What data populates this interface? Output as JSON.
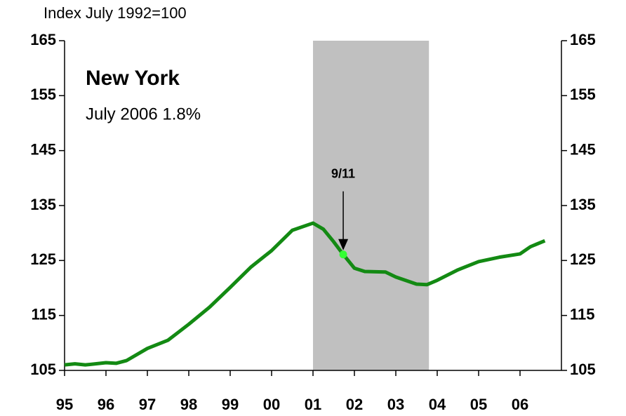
{
  "chart_data": {
    "type": "line",
    "title": "New York",
    "subtitle": "July 2006 1.8%",
    "y_axis_label": "Index  July 1992=100",
    "xlim": [
      1995,
      2007
    ],
    "xticks": [
      {
        "value": 1995,
        "label": "95"
      },
      {
        "value": 1996,
        "label": "96"
      },
      {
        "value": 1997,
        "label": "97"
      },
      {
        "value": 1998,
        "label": "98"
      },
      {
        "value": 1999,
        "label": "99"
      },
      {
        "value": 2000,
        "label": "00"
      },
      {
        "value": 2001,
        "label": "01"
      },
      {
        "value": 2002,
        "label": "02"
      },
      {
        "value": 2003,
        "label": "03"
      },
      {
        "value": 2004,
        "label": "04"
      },
      {
        "value": 2005,
        "label": "05"
      },
      {
        "value": 2006,
        "label": "06"
      }
    ],
    "ylim": [
      105,
      165
    ],
    "yticks": [
      105,
      115,
      125,
      135,
      145,
      155,
      165
    ],
    "y2lim": [
      105,
      165
    ],
    "y2ticks": [
      105,
      115,
      125,
      135,
      145,
      155,
      165
    ],
    "shaded_region": {
      "x": [
        2001.0,
        2003.8
      ],
      "color": "#c0c0c0"
    },
    "series": [
      {
        "name": "New York",
        "color": "#138a13",
        "x": [
          1995.0,
          1995.25,
          1995.5,
          1996.0,
          1996.25,
          1996.5,
          1997.0,
          1997.5,
          1998.0,
          1998.5,
          1999.0,
          1999.5,
          2000.0,
          2000.5,
          2001.0,
          2001.25,
          2001.5,
          2001.73,
          2002.0,
          2002.25,
          2002.75,
          2003.0,
          2003.5,
          2003.75,
          2004.0,
          2004.5,
          2005.0,
          2005.5,
          2006.0,
          2006.25,
          2006.6
        ],
        "values": [
          106.0,
          106.2,
          106.0,
          106.4,
          106.3,
          106.8,
          109.0,
          110.5,
          113.4,
          116.5,
          120.1,
          123.8,
          126.8,
          130.5,
          131.8,
          130.7,
          128.4,
          126.1,
          123.6,
          123.0,
          122.9,
          122.0,
          120.7,
          120.6,
          121.4,
          123.3,
          124.8,
          125.6,
          126.2,
          127.5,
          128.6
        ]
      }
    ],
    "annotations": [
      {
        "text": "9/11",
        "x": 2001.73,
        "y": 126.1,
        "color": "#33ff33"
      }
    ]
  }
}
